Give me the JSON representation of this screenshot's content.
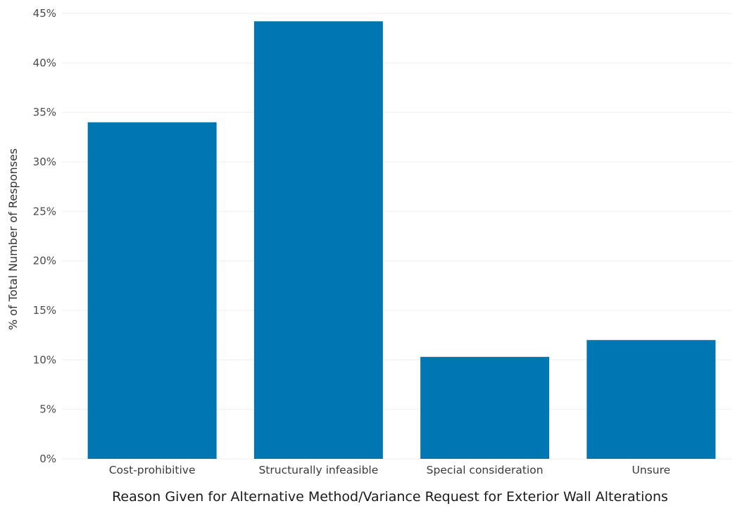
{
  "chart_data": {
    "type": "bar",
    "title": "",
    "xlabel": "Reason Given for Alternative Method/Variance Request for Exterior Wall Alterations",
    "ylabel": "% of Total Number of Responses",
    "categories": [
      "Cost-prohibitive",
      "Structurally infeasible",
      "Special consideration",
      "Unsure"
    ],
    "values": [
      34,
      44.2,
      10.3,
      12
    ],
    "value_unit": "%",
    "ylim": [
      0,
      45
    ],
    "yticks": [
      0,
      5,
      10,
      15,
      20,
      25,
      30,
      35,
      40,
      45
    ],
    "ytick_labels": [
      "0%",
      "5%",
      "10%",
      "15%",
      "20%",
      "25%",
      "30%",
      "35%",
      "40%",
      "45%"
    ],
    "grid": "horizontal",
    "legend": "none",
    "colors": {
      "bar": "#0077b3",
      "grid": "#eeeeee"
    }
  }
}
